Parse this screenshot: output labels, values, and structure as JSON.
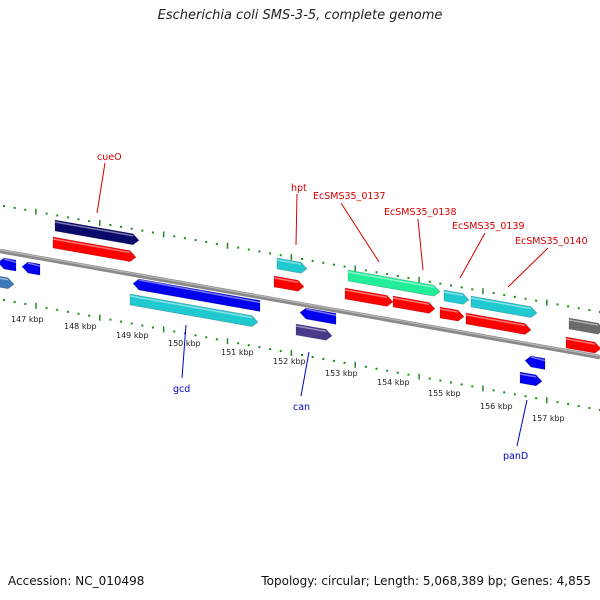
{
  "title": "Escherichia coli SMS-3-5, complete genome",
  "accession": "Accession: NC_010498",
  "summary": "Topology: circular; Length: 5,068,389 bp; Genes: 4,855",
  "colors": {
    "backbone": "#7a7a7a",
    "ticks": "#1f8a1f",
    "forward_label": "#d40000",
    "reverse_label": "#0000c8",
    "cds": "#ff0000",
    "gene_blue": "#0000ee",
    "gene_cyan": "#20c8d0",
    "gene_navy": "#0a0a6a",
    "gene_green": "#22ee99",
    "gene_purple": "#4a3a8a",
    "gene_gray": "#6a6a6a"
  },
  "kbp_labels": [
    "147 kbp",
    "148 kbp",
    "149 kbp",
    "150 kbp",
    "151 kbp",
    "152 kbp",
    "153 kbp",
    "154 kbp",
    "155 kbp",
    "156 kbp",
    "157 kbp"
  ],
  "forward_labels": [
    "cueO",
    "hpt",
    "EcSMS35_0137",
    "EcSMS35_0138",
    "EcSMS35_0139",
    "EcSMS35_0140"
  ],
  "reverse_labels": [
    "gcd",
    "can",
    "panD"
  ]
}
